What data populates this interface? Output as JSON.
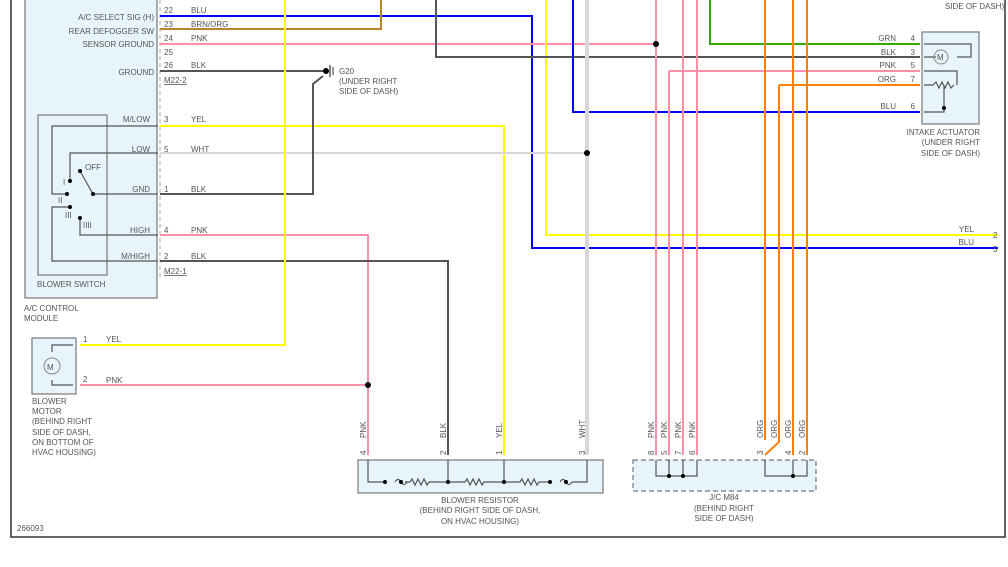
{
  "colors": {
    "BLU": "#0000ff",
    "BRN_ORG": "#b8862b",
    "PNK": "#ff8fa8",
    "BLK": "#555555",
    "YEL": "#ffff00",
    "WHT": "#d8d8d8",
    "GRN": "#33aa00",
    "ORG": "#ff7f00",
    "component_fill": "#e8f4fb"
  },
  "ac_module": {
    "name_line1": "A/C CONTROL",
    "name_line2": "MODULE",
    "connector_m22_2": "M22-2",
    "connector_m22_1": "M22-1",
    "pins": [
      {
        "label": "A/C SELECT SIG (H)",
        "pin": "22",
        "wire": "BLU"
      },
      {
        "label": "REAR DEFOGGER SW",
        "pin": "23",
        "wire": "BRN/ORG"
      },
      {
        "label": "SENSOR GROUND",
        "pin": "24",
        "wire": "PNK"
      },
      {
        "label": "",
        "pin": "25",
        "wire": ""
      },
      {
        "label": "GROUND",
        "pin": "26",
        "wire": "BLK"
      }
    ],
    "blower_switch": {
      "name": "BLOWER SWITCH",
      "positions": [
        "OFF",
        "I",
        "II",
        "III",
        "IIII"
      ],
      "pins": [
        {
          "label": "M/LOW",
          "pin": "3",
          "wire": "YEL"
        },
        {
          "label": "LOW",
          "pin": "5",
          "wire": "WHT"
        },
        {
          "label": "GND",
          "pin": "1",
          "wire": "BLK"
        },
        {
          "label": "HIGH",
          "pin": "4",
          "wire": "PNK"
        },
        {
          "label": "M/HIGH",
          "pin": "2",
          "wire": "BLK"
        }
      ]
    }
  },
  "ground": {
    "name": "G20",
    "loc1": "(UNDER RIGHT",
    "loc2": "SIDE OF DASH)"
  },
  "top_right_label": "SIDE OF DASH)",
  "blower_motor": {
    "symbol": "M",
    "lines": [
      "BLOWER",
      "MOTOR",
      "(BEHIND RIGHT",
      "SIDE OF DASH,",
      "ON BOTTOM OF",
      "HVAC HOUSING)"
    ],
    "pins": [
      {
        "pin": "1",
        "wire": "YEL"
      },
      {
        "pin": "2",
        "wire": "PNK"
      }
    ]
  },
  "intake_actuator": {
    "symbol": "M",
    "lines": [
      "INTAKE ACTUATOR",
      "(UNDER RIGHT",
      "SIDE OF DASH)"
    ],
    "pins": [
      {
        "pin": "4",
        "wire": "GRN"
      },
      {
        "pin": "3",
        "wire": "BLK"
      },
      {
        "pin": "5",
        "wire": "PNK"
      },
      {
        "pin": "7",
        "wire": "ORG"
      },
      {
        "pin": "6",
        "wire": "BLU"
      }
    ]
  },
  "right_edge": [
    {
      "wire": "YEL",
      "pin": "2"
    },
    {
      "wire": "BLU",
      "pin": "3"
    }
  ],
  "blower_resistor": {
    "lines": [
      "BLOWER RESISTOR",
      "(BEHIND RIGHT SIDE OF DASH,",
      "ON HVAC HOUSING)"
    ],
    "pins": [
      {
        "pin": "4",
        "wire": "PNK"
      },
      {
        "pin": "2",
        "wire": "BLK"
      },
      {
        "pin": "1",
        "wire": "YEL"
      },
      {
        "pin": "3",
        "wire": "WHT"
      }
    ]
  },
  "jc_m84": {
    "lines": [
      "J/C M84",
      "(BEHIND RIGHT",
      "SIDE OF DASH)"
    ],
    "pins": [
      {
        "pin": "8",
        "wire": "PNK"
      },
      {
        "pin": "5",
        "wire": "PNK"
      },
      {
        "pin": "7",
        "wire": "PNK"
      },
      {
        "pin": "6",
        "wire": "PNK"
      },
      {
        "pin": "3",
        "wire": "ORG"
      },
      {
        "pin": "",
        "wire": "ORG"
      },
      {
        "pin": "4",
        "wire": "ORG"
      },
      {
        "pin": "2",
        "wire": "ORG"
      }
    ]
  },
  "diagram_id": "266093"
}
